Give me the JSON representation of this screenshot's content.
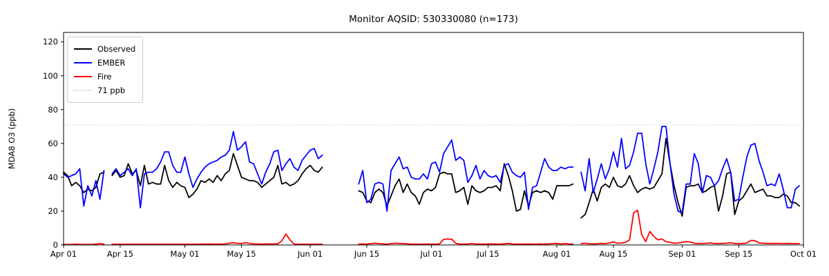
{
  "chart_data": {
    "type": "line",
    "title": "Monitor AQSID: 530330080 (n=173)",
    "xlabel": "",
    "ylabel": "MDA8 O3 (ppb)",
    "x_unit": "daily values, day index 0 = Apr 01",
    "x_range_days": 183,
    "ylim": [
      0,
      125.6
    ],
    "y_ticks": [
      0,
      20,
      40,
      60,
      80,
      100,
      120
    ],
    "x_ticks": [
      {
        "label": "Apr 01",
        "day": 0
      },
      {
        "label": "Apr 15",
        "day": 14
      },
      {
        "label": "May 01",
        "day": 30
      },
      {
        "label": "May 15",
        "day": 44
      },
      {
        "label": "Jun 01",
        "day": 61
      },
      {
        "label": "Jun 15",
        "day": 75
      },
      {
        "label": "Jul 01",
        "day": 91
      },
      {
        "label": "Jul 15",
        "day": 105
      },
      {
        "label": "Aug 01",
        "day": 122
      },
      {
        "label": "Aug 15",
        "day": 136
      },
      {
        "label": "Sep 01",
        "day": 153
      },
      {
        "label": "Sep 15",
        "day": 167
      },
      {
        "label": "Oct 01",
        "day": 183
      }
    ],
    "threshold": {
      "label": "71 ppb",
      "value": 71,
      "color": "#d3d3d3",
      "style": "dotted"
    },
    "legend_position": "upper-left",
    "grid": false,
    "series": [
      {
        "name": "Observed",
        "color": "#000000",
        "values": [
          43,
          41,
          35,
          37,
          35,
          31,
          33,
          32,
          34,
          42,
          43,
          null,
          41,
          44,
          40,
          41,
          48,
          42,
          44,
          35,
          47,
          36,
          37,
          36,
          36,
          47,
          38,
          34,
          37,
          35,
          34,
          28,
          30,
          33,
          38,
          37,
          39,
          37,
          41,
          38,
          42,
          44,
          54,
          47,
          40,
          39,
          38,
          38,
          37,
          34,
          36,
          38,
          40,
          47,
          36,
          37,
          35,
          36,
          38,
          42,
          45,
          47,
          44,
          43,
          46,
          null,
          null,
          null,
          null,
          null,
          null,
          null,
          null,
          32,
          31,
          26,
          25,
          31,
          33,
          31,
          23,
          29,
          35,
          39,
          31,
          36,
          31,
          29,
          24,
          31,
          33,
          32,
          34,
          42,
          43,
          42,
          42,
          31,
          32,
          34,
          24,
          35,
          32,
          31,
          32,
          34,
          34,
          35,
          32,
          48,
          41,
          32,
          20,
          21,
          32,
          23,
          31,
          32,
          31,
          32,
          31,
          27,
          35,
          35,
          35,
          35,
          36,
          null,
          16,
          18,
          25,
          33,
          26,
          34,
          36,
          34,
          40,
          35,
          34,
          36,
          41,
          35,
          31,
          33,
          34,
          33,
          34,
          38,
          42,
          63,
          48,
          35,
          25,
          17,
          34,
          35,
          35,
          36,
          31,
          32,
          34,
          35,
          20,
          29,
          42,
          43,
          18,
          26,
          28,
          32,
          36,
          31,
          32,
          33,
          29,
          29,
          28,
          28,
          30,
          29,
          25,
          25,
          23
        ]
      },
      {
        "name": "EMBER",
        "color": "#0000ff",
        "values": [
          42,
          40,
          41,
          42,
          45,
          23,
          35,
          29,
          38,
          27,
          44,
          null,
          42,
          45,
          41,
          43,
          45,
          41,
          45,
          22,
          42,
          43,
          43,
          45,
          49,
          55,
          55,
          47,
          43,
          43,
          52,
          42,
          34,
          39,
          43,
          46,
          48,
          49,
          50,
          52,
          53,
          56,
          67,
          56,
          58,
          61,
          49,
          48,
          42,
          36,
          43,
          48,
          55,
          56,
          44,
          48,
          51,
          46,
          44,
          50,
          53,
          56,
          57,
          51,
          53,
          null,
          null,
          null,
          null,
          null,
          null,
          null,
          null,
          36,
          44,
          25,
          27,
          36,
          37,
          36,
          20,
          44,
          48,
          52,
          45,
          46,
          40,
          39,
          39,
          42,
          39,
          48,
          49,
          43,
          54,
          58,
          62,
          50,
          52,
          50,
          37,
          41,
          47,
          39,
          44,
          41,
          40,
          41,
          37,
          47,
          48,
          43,
          41,
          40,
          43,
          21,
          34,
          35,
          43,
          51,
          46,
          44,
          44,
          46,
          45,
          46,
          46,
          null,
          43,
          32,
          51,
          31,
          39,
          48,
          39,
          45,
          55,
          46,
          63,
          45,
          47,
          55,
          66,
          66,
          48,
          36,
          45,
          55,
          70,
          70,
          48,
          30,
          20,
          19,
          36,
          36,
          54,
          48,
          31,
          41,
          40,
          35,
          38,
          45,
          51,
          43,
          26,
          27,
          40,
          52,
          59,
          60,
          50,
          43,
          35,
          36,
          35,
          42,
          33,
          22,
          22,
          33,
          35
        ]
      },
      {
        "name": "Fire",
        "color": "#ff0000",
        "values": [
          0.3,
          0.3,
          0.3,
          0.5,
          0.3,
          0.3,
          0.3,
          0.3,
          0.5,
          0.8,
          0.5,
          null,
          0.4,
          0.4,
          0.4,
          0.4,
          0.4,
          0.4,
          0.4,
          0.4,
          0.4,
          0.4,
          0.4,
          0.4,
          0.4,
          0.4,
          0.4,
          0.4,
          0.4,
          0.4,
          0.4,
          0.4,
          0.4,
          0.4,
          0.5,
          0.5,
          0.6,
          0.5,
          0.5,
          0.5,
          0.6,
          1.0,
          1.3,
          1.0,
          0.8,
          1.4,
          0.9,
          0.6,
          0.6,
          0.5,
          0.6,
          0.6,
          0.6,
          0.6,
          2.5,
          6.5,
          3.0,
          0.6,
          0.4,
          0.4,
          0.4,
          0.4,
          0.4,
          0.4,
          0.4,
          null,
          null,
          null,
          null,
          null,
          null,
          null,
          null,
          0.5,
          0.6,
          0.5,
          0.8,
          1.0,
          0.8,
          0.6,
          0.5,
          0.8,
          1.0,
          0.9,
          0.8,
          0.7,
          0.5,
          0.5,
          0.4,
          0.5,
          0.5,
          0.5,
          0.5,
          0.6,
          3.3,
          3.5,
          3.4,
          1.0,
          0.5,
          0.5,
          0.6,
          0.8,
          0.6,
          0.5,
          0.5,
          0.6,
          0.6,
          0.5,
          0.5,
          0.7,
          0.9,
          0.6,
          0.5,
          0.5,
          0.5,
          0.6,
          0.5,
          0.5,
          0.6,
          0.5,
          0.6,
          0.8,
          0.9,
          0.6,
          0.8,
          0.6,
          0.5,
          null,
          0.8,
          1.0,
          0.7,
          0.6,
          0.7,
          0.9,
          0.8,
          1.2,
          1.8,
          1.0,
          1.2,
          1.5,
          3.0,
          19.0,
          20.5,
          6.0,
          2.0,
          8.0,
          5.0,
          3.0,
          3.5,
          2.0,
          1.5,
          1.0,
          1.2,
          1.5,
          2.0,
          1.8,
          1.0,
          0.8,
          0.8,
          1.0,
          1.2,
          0.9,
          0.8,
          0.9,
          1.0,
          1.3,
          0.9,
          0.8,
          0.9,
          1.2,
          2.7,
          2.5,
          1.2,
          1.0,
          0.9,
          0.9,
          0.9,
          0.9,
          0.8,
          0.9,
          0.8,
          0.8,
          0.8
        ]
      }
    ]
  },
  "legend": {
    "items": [
      {
        "label": "Observed"
      },
      {
        "label": "EMBER"
      },
      {
        "label": "Fire"
      },
      {
        "label": "71 ppb"
      }
    ]
  }
}
